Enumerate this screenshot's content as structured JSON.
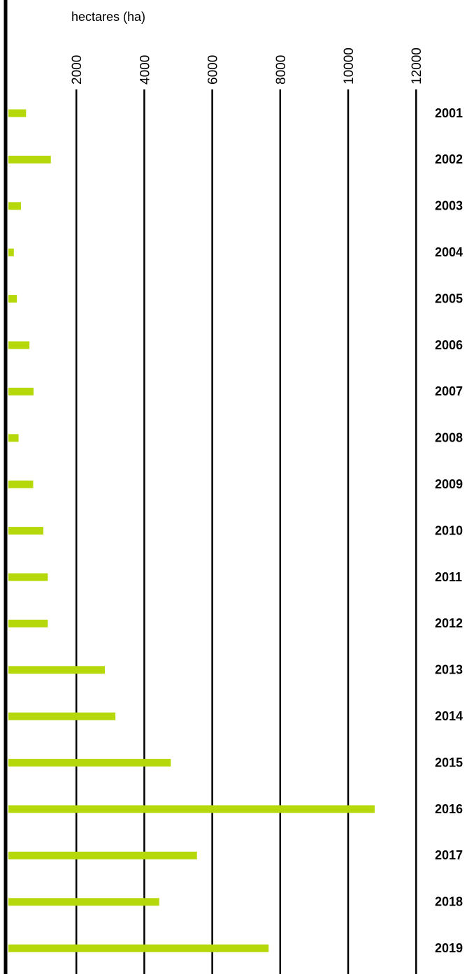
{
  "chart_data": {
    "type": "bar",
    "orientation": "horizontal",
    "unit_label": "hectares (ha)",
    "ticks": [
      "2000",
      "4000",
      "6000",
      "8000",
      "10000",
      "12000"
    ],
    "tick_values": [
      2000,
      4000,
      6000,
      8000,
      10000,
      12000
    ],
    "xlim": [
      0,
      12000
    ],
    "grid": true,
    "categories": [
      "2001",
      "2002",
      "2003",
      "2004",
      "2005",
      "2006",
      "2007",
      "2008",
      "2009",
      "2010",
      "2011",
      "2012",
      "2013",
      "2014",
      "2015",
      "2016",
      "2017",
      "2018",
      "2019"
    ],
    "values": [
      520,
      1250,
      370,
      160,
      250,
      620,
      740,
      300,
      730,
      1030,
      1160,
      1160,
      2840,
      3150,
      4780,
      10780,
      5550,
      4440,
      7660
    ],
    "bar_color": "#b5d80a",
    "title": "",
    "xlabel": "hectares (ha)",
    "ylabel": ""
  }
}
